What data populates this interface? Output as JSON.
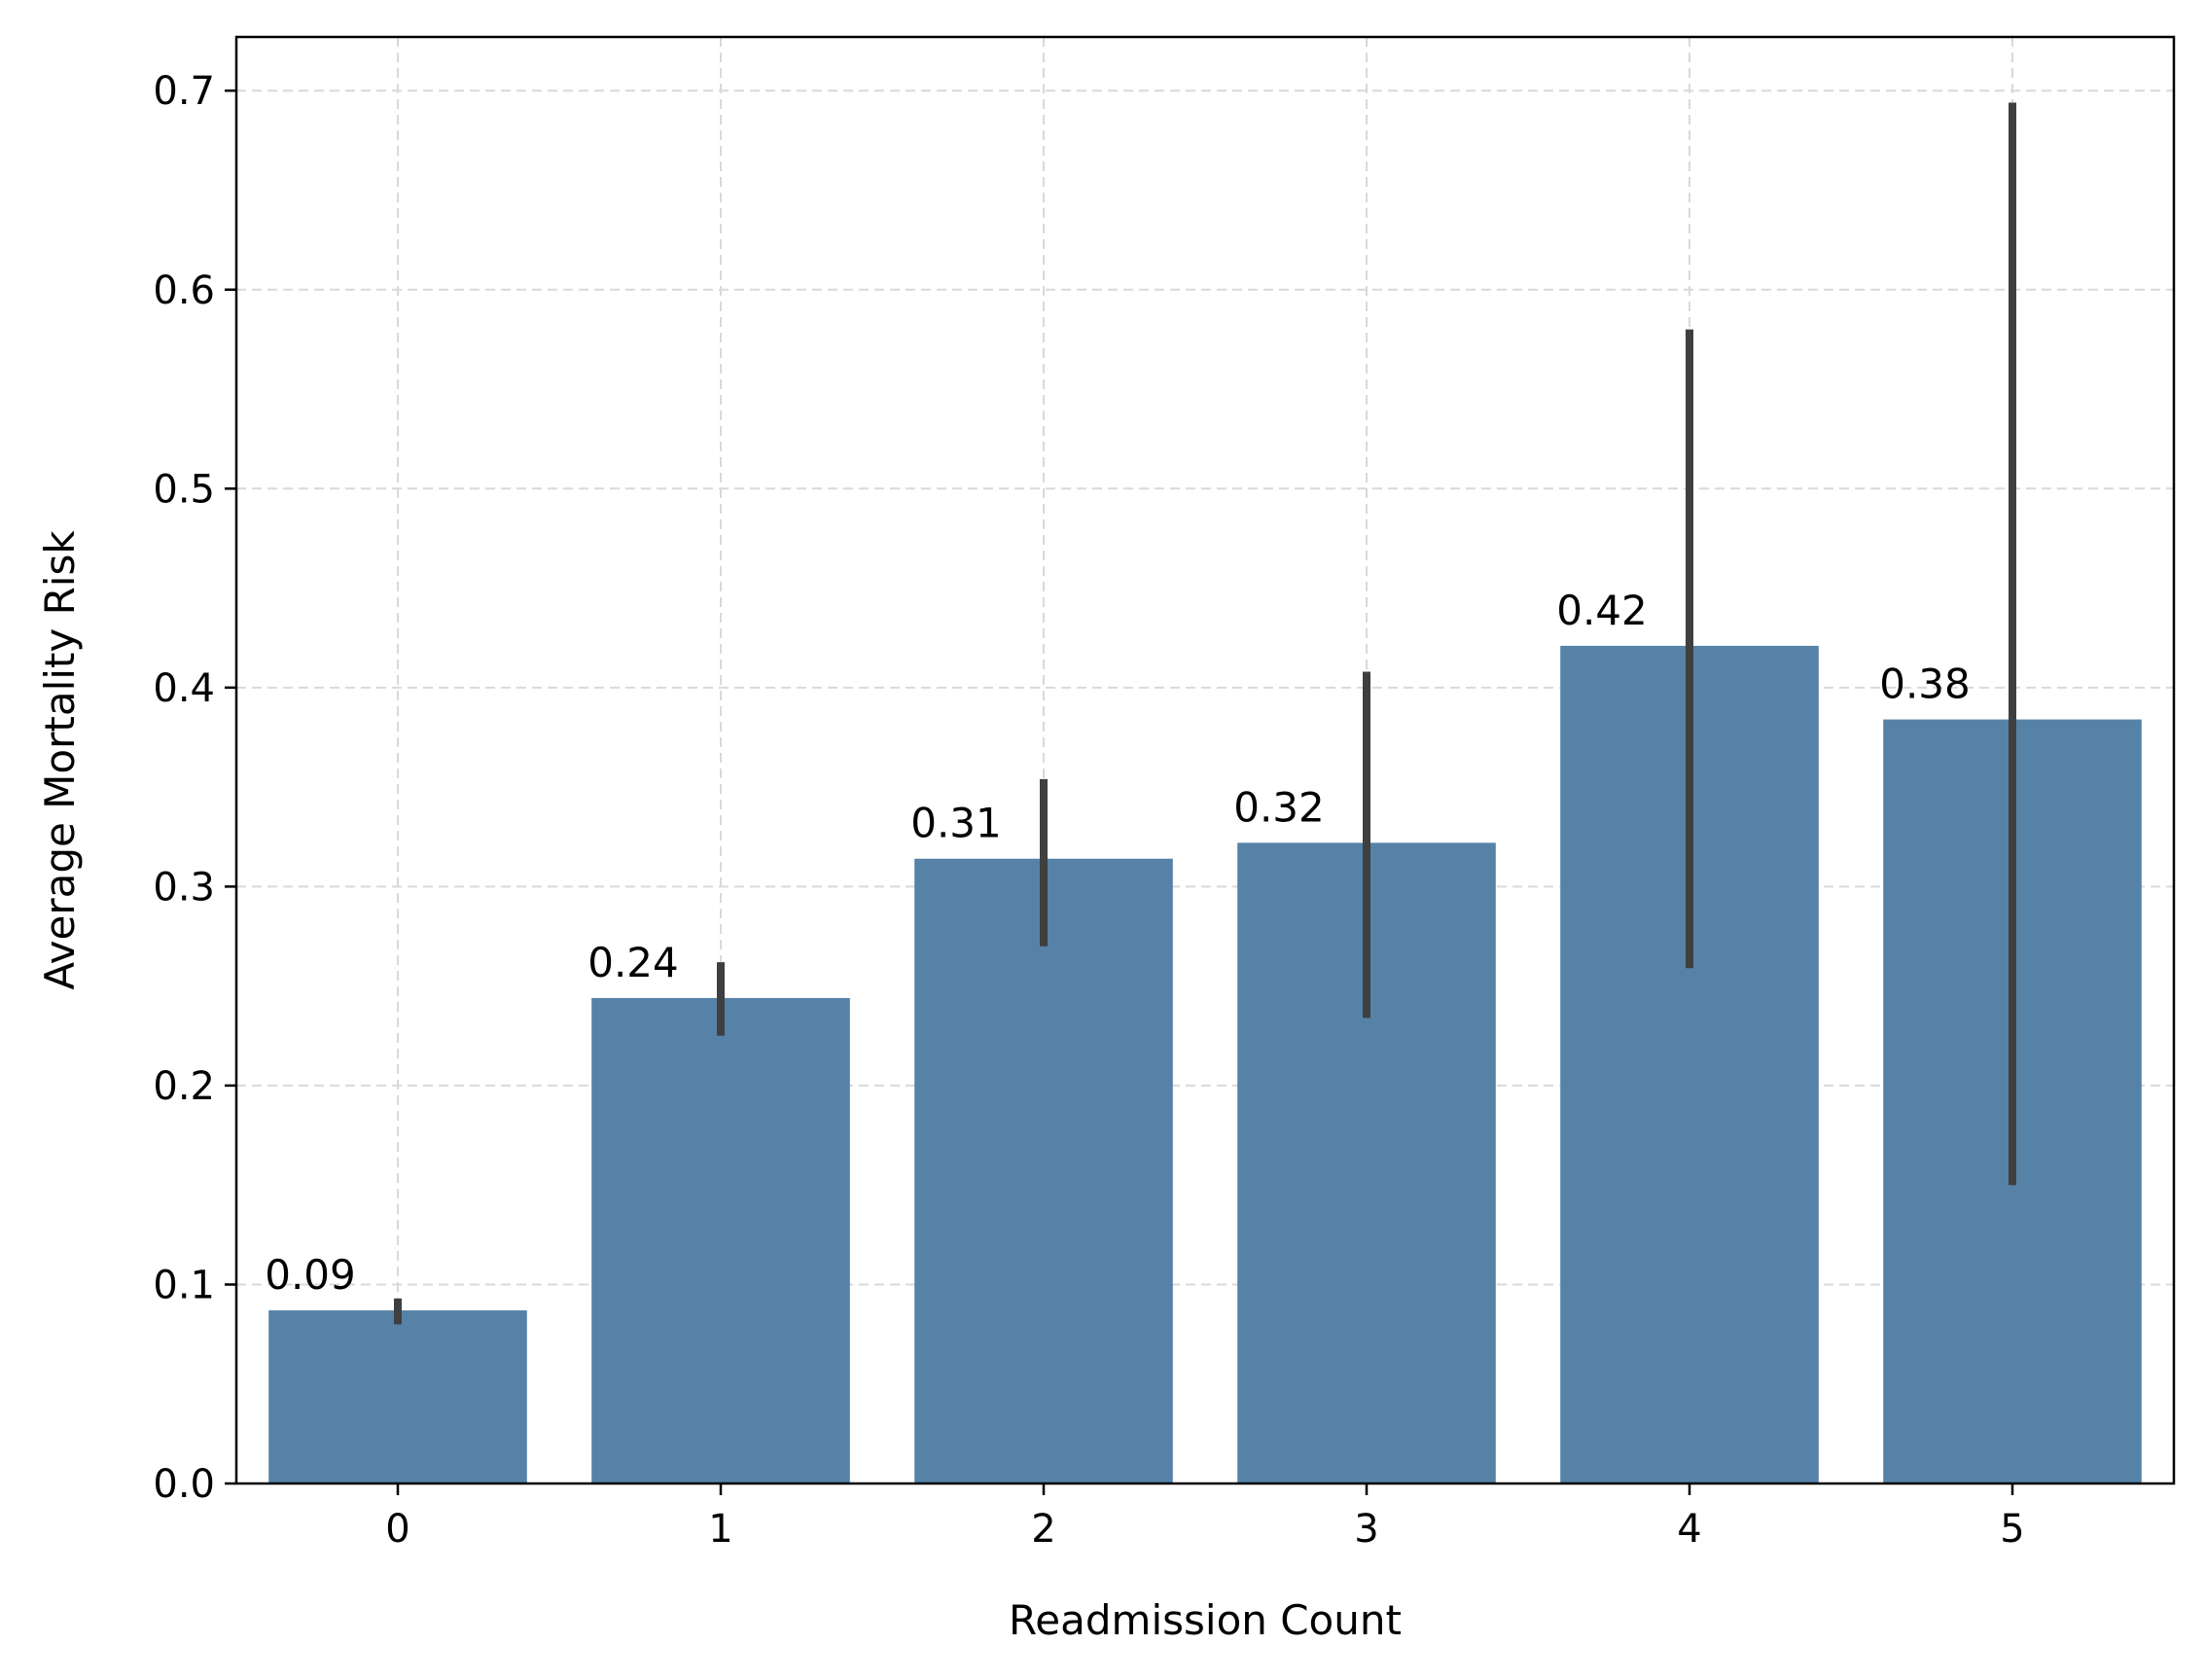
{
  "chart_data": {
    "type": "bar",
    "title": "",
    "xlabel": "Readmission Count",
    "ylabel": "Average Mortality Risk",
    "categories": [
      "0",
      "1",
      "2",
      "3",
      "4",
      "5"
    ],
    "values": [
      0.087,
      0.244,
      0.314,
      0.322,
      0.421,
      0.384
    ],
    "value_labels": [
      "0.09",
      "0.24",
      "0.31",
      "0.32",
      "0.42",
      "0.38"
    ],
    "error_low": [
      0.08,
      0.225,
      0.27,
      0.234,
      0.259,
      0.15
    ],
    "error_high": [
      0.093,
      0.262,
      0.354,
      0.408,
      0.58,
      0.694
    ],
    "ylim": [
      0.0,
      0.727
    ],
    "yticks": [
      0.0,
      0.1,
      0.2,
      0.3,
      0.4,
      0.5,
      0.6,
      0.7
    ],
    "ytick_labels": [
      "0.0",
      "0.1",
      "0.2",
      "0.3",
      "0.4",
      "0.5",
      "0.6",
      "0.7"
    ],
    "grid": true,
    "legend": "none",
    "colors": {
      "bar": "#5682a8",
      "error_bar": "#3f3f3f",
      "grid": "#d9d9d9"
    }
  }
}
